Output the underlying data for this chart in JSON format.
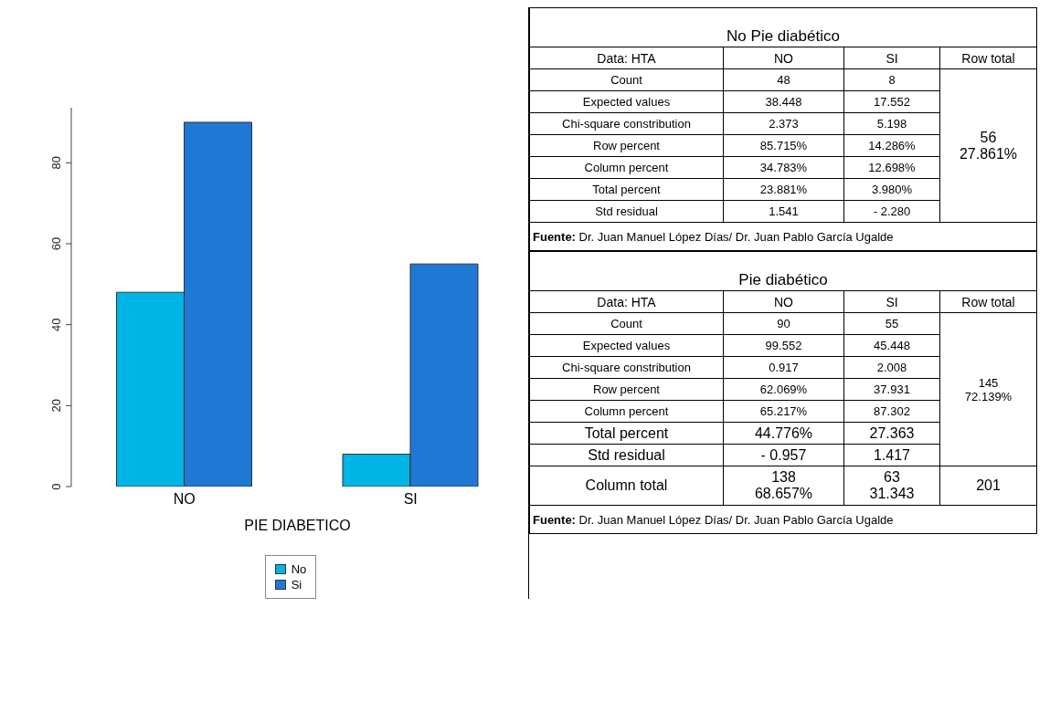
{
  "chart_data": [
    {
      "type": "bar",
      "xlabel": "PIE DIABETICO",
      "categories": [
        "NO",
        "SI"
      ],
      "series": [
        {
          "name": "No",
          "color": "#00b4e6",
          "values": [
            48,
            8
          ]
        },
        {
          "name": "Si",
          "color": "#1f78d4",
          "values": [
            90,
            55
          ]
        }
      ],
      "ylim": [
        0,
        93.6
      ],
      "yticks": [
        0,
        20,
        40,
        60,
        80
      ],
      "legend": "bottom"
    },
    {
      "type": "other",
      "title": "No Pie diabético",
      "annotations": [
        "Data: HTA",
        "NO",
        "SI",
        "Row total",
        "Count",
        "48",
        "8",
        "Expected values",
        "38.448",
        "17.552",
        "Chi-square constribution",
        "2.373",
        "5.198",
        "Row percent",
        "85.715%",
        "14.286%",
        "Column percent",
        "34.783%",
        "12.698%",
        "Total percent",
        "23.881%",
        "3.980%",
        "Std residual",
        "1.541",
        "- 2.280",
        "56",
        "27.861%",
        "Fuente:",
        "Dr. Juan Manuel López Días/ Dr. Juan Pablo García Ugalde"
      ]
    },
    {
      "type": "other",
      "title": "Pie diabético",
      "annotations": [
        "Data: HTA",
        "NO",
        "SI",
        "Row total",
        "Count",
        "90",
        "55",
        "Expected values",
        "99.552",
        "45.448",
        "Chi-square constribution",
        "0.917",
        "2.008",
        "Row percent",
        "62.069%",
        "37.931",
        "Column percent",
        "65.217%",
        "87.302",
        "Total percent",
        "44.776%",
        "27.363",
        "Std residual",
        "- 0.957",
        "1.417",
        "145",
        "72.139%",
        "Column total",
        "138",
        "68.657%",
        "63",
        "31.343",
        "201",
        "Fuente:",
        "Dr. Juan Manuel López Días/ Dr. Juan Pablo García Ugalde"
      ]
    }
  ]
}
